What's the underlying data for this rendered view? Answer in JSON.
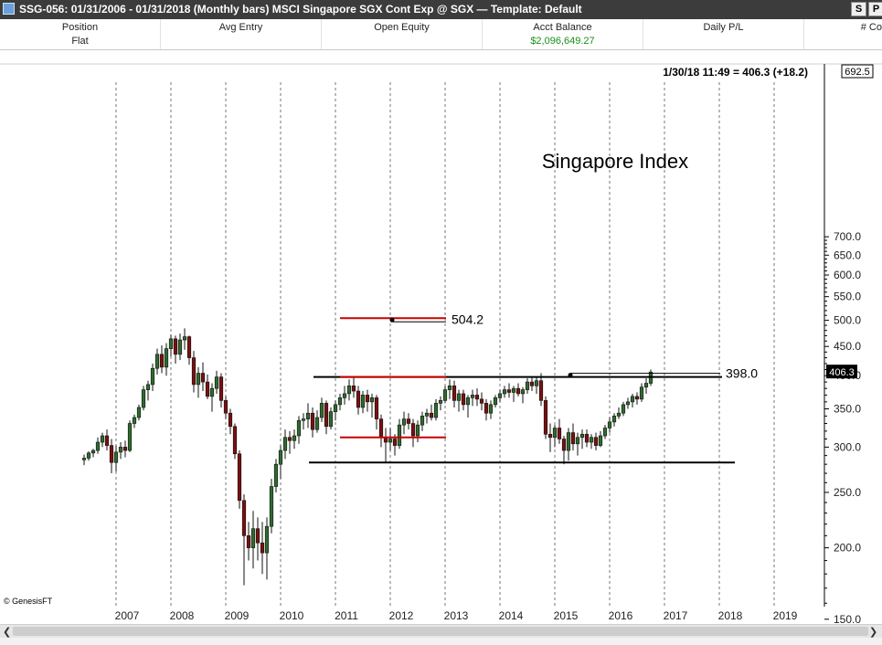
{
  "window": {
    "title": "SSG-056:  01/31/2006 - 01/31/2018  (Monthly bars)   MSCI Singapore SGX Cont Exp @ SGX  —  Template: Default",
    "buttons": [
      "S",
      "P"
    ]
  },
  "info_bar": {
    "columns": [
      {
        "header": "Position",
        "value": "Flat"
      },
      {
        "header": "Avg Entry",
        "value": ""
      },
      {
        "header": "Open Equity",
        "value": ""
      },
      {
        "header": "Acct Balance",
        "value": "$2,096,649.27"
      },
      {
        "header": "Daily P/L",
        "value": ""
      },
      {
        "header": "# Co",
        "value": ""
      }
    ]
  },
  "chart_data": {
    "type": "candlestick",
    "title": "Singapore Index",
    "quote_line": "1/30/18 11:49 = 406.3 (+18.2)",
    "y_scale": "log",
    "ylim": [
      145,
      708
    ],
    "y_ticks": [
      "150.0",
      "200.0",
      "250.0",
      "300.0",
      "350.0",
      "400.0",
      "450.0",
      "500.0",
      "550.0",
      "600.0",
      "650.0",
      "700.0"
    ],
    "x_labels": [
      "2007",
      "2008",
      "2009",
      "2010",
      "2011",
      "2012",
      "2013",
      "2014",
      "2015",
      "2016",
      "2017",
      "2018",
      "2019"
    ],
    "grid": "vertical dashed at year starts",
    "last_price_tag": "406.3",
    "top_price_tag": "692.5",
    "copyright": "© GenesisFT",
    "annotations": [
      {
        "type": "target_line",
        "label": "504.2",
        "value": 504.2,
        "color": "#cc0000"
      },
      {
        "type": "resistance_line",
        "label": "398.0",
        "value": 398.0,
        "color": "#000000"
      },
      {
        "type": "support_line",
        "value": 282,
        "color": "#000000"
      },
      {
        "type": "range_top_marker",
        "value": 398,
        "color": "#cc0000"
      },
      {
        "type": "range_bottom_marker",
        "value": 312,
        "color": "#cc0000"
      }
    ],
    "start": "2006-06",
    "candles": [
      [
        285,
        291,
        279,
        287
      ],
      [
        287,
        295,
        284,
        293
      ],
      [
        293,
        298,
        288,
        296
      ],
      [
        296,
        312,
        292,
        306
      ],
      [
        306,
        318,
        300,
        314
      ],
      [
        314,
        322,
        296,
        302
      ],
      [
        302,
        310,
        270,
        282
      ],
      [
        282,
        302,
        272,
        294
      ],
      [
        294,
        306,
        286,
        300
      ],
      [
        300,
        308,
        288,
        296
      ],
      [
        296,
        334,
        294,
        330
      ],
      [
        330,
        342,
        324,
        338
      ],
      [
        338,
        356,
        334,
        352
      ],
      [
        352,
        384,
        348,
        378
      ],
      [
        378,
        392,
        362,
        386
      ],
      [
        386,
        420,
        376,
        412
      ],
      [
        412,
        446,
        402,
        436
      ],
      [
        436,
        452,
        404,
        414
      ],
      [
        414,
        456,
        400,
        446
      ],
      [
        446,
        472,
        432,
        464
      ],
      [
        464,
        470,
        420,
        436
      ],
      [
        436,
        474,
        426,
        462
      ],
      [
        462,
        484,
        444,
        468
      ],
      [
        468,
        470,
        418,
        430
      ],
      [
        430,
        442,
        374,
        386
      ],
      [
        386,
        414,
        366,
        404
      ],
      [
        404,
        422,
        376,
        390
      ],
      [
        390,
        402,
        364,
        368
      ],
      [
        368,
        388,
        346,
        380
      ],
      [
        380,
        408,
        372,
        398
      ],
      [
        398,
        404,
        352,
        362
      ],
      [
        362,
        368,
        336,
        344
      ],
      [
        344,
        350,
        316,
        326
      ],
      [
        326,
        330,
        286,
        292
      ],
      [
        292,
        296,
        234,
        242
      ],
      [
        242,
        248,
        172,
        210
      ],
      [
        210,
        222,
        190,
        200
      ],
      [
        200,
        232,
        184,
        216
      ],
      [
        216,
        226,
        190,
        204
      ],
      [
        204,
        222,
        180,
        196
      ],
      [
        196,
        226,
        176,
        218
      ],
      [
        218,
        264,
        212,
        256
      ],
      [
        256,
        286,
        250,
        280
      ],
      [
        280,
        302,
        264,
        296
      ],
      [
        296,
        322,
        286,
        312
      ],
      [
        312,
        320,
        292,
        308
      ],
      [
        308,
        322,
        298,
        314
      ],
      [
        314,
        340,
        304,
        334
      ],
      [
        334,
        344,
        322,
        336
      ],
      [
        336,
        358,
        324,
        344
      ],
      [
        344,
        352,
        312,
        322
      ],
      [
        322,
        348,
        318,
        338
      ],
      [
        338,
        366,
        332,
        358
      ],
      [
        358,
        362,
        316,
        326
      ],
      [
        326,
        352,
        322,
        346
      ],
      [
        346,
        362,
        334,
        356
      ],
      [
        356,
        372,
        348,
        366
      ],
      [
        366,
        384,
        356,
        372
      ],
      [
        372,
        394,
        362,
        384
      ],
      [
        384,
        398,
        366,
        376
      ],
      [
        376,
        384,
        342,
        352
      ],
      [
        352,
        376,
        344,
        370
      ],
      [
        370,
        378,
        346,
        360
      ],
      [
        360,
        372,
        338,
        366
      ],
      [
        366,
        370,
        322,
        336
      ],
      [
        336,
        342,
        300,
        312
      ],
      [
        312,
        324,
        282,
        306
      ],
      [
        306,
        324,
        296,
        310
      ],
      [
        310,
        316,
        290,
        302
      ],
      [
        302,
        336,
        298,
        328
      ],
      [
        328,
        346,
        316,
        336
      ],
      [
        336,
        344,
        322,
        330
      ],
      [
        330,
        336,
        300,
        314
      ],
      [
        314,
        334,
        306,
        328
      ],
      [
        328,
        346,
        320,
        340
      ],
      [
        340,
        350,
        330,
        344
      ],
      [
        344,
        356,
        334,
        338
      ],
      [
        338,
        364,
        334,
        358
      ],
      [
        358,
        368,
        348,
        362
      ],
      [
        362,
        384,
        358,
        378
      ],
      [
        378,
        394,
        364,
        384
      ],
      [
        384,
        392,
        352,
        362
      ],
      [
        362,
        378,
        346,
        372
      ],
      [
        372,
        378,
        348,
        356
      ],
      [
        356,
        370,
        338,
        366
      ],
      [
        366,
        378,
        354,
        370
      ],
      [
        370,
        380,
        354,
        364
      ],
      [
        364,
        374,
        348,
        358
      ],
      [
        358,
        364,
        334,
        344
      ],
      [
        344,
        362,
        336,
        356
      ],
      [
        356,
        370,
        352,
        366
      ],
      [
        366,
        378,
        360,
        372
      ],
      [
        372,
        384,
        366,
        378
      ],
      [
        378,
        388,
        366,
        374
      ],
      [
        374,
        384,
        360,
        380
      ],
      [
        380,
        388,
        368,
        372
      ],
      [
        372,
        382,
        358,
        378
      ],
      [
        378,
        396,
        372,
        390
      ],
      [
        390,
        398,
        376,
        384
      ],
      [
        384,
        398,
        372,
        392
      ],
      [
        392,
        404,
        354,
        362
      ],
      [
        362,
        368,
        310,
        316
      ],
      [
        316,
        330,
        294,
        312
      ],
      [
        312,
        328,
        300,
        324
      ],
      [
        324,
        336,
        304,
        310
      ],
      [
        310,
        314,
        280,
        296
      ],
      [
        296,
        324,
        284,
        318
      ],
      [
        318,
        330,
        296,
        304
      ],
      [
        304,
        318,
        290,
        312
      ],
      [
        312,
        322,
        298,
        316
      ],
      [
        316,
        322,
        300,
        306
      ],
      [
        306,
        316,
        298,
        312
      ],
      [
        312,
        318,
        296,
        302
      ],
      [
        302,
        320,
        300,
        314
      ],
      [
        314,
        328,
        310,
        324
      ],
      [
        324,
        338,
        318,
        332
      ],
      [
        332,
        344,
        326,
        340
      ],
      [
        340,
        352,
        336,
        344
      ],
      [
        344,
        360,
        340,
        356
      ],
      [
        356,
        366,
        350,
        360
      ],
      [
        360,
        372,
        352,
        368
      ],
      [
        368,
        374,
        356,
        364
      ],
      [
        364,
        388,
        360,
        382
      ],
      [
        382,
        396,
        372,
        388
      ],
      [
        388,
        410,
        384,
        406
      ]
    ]
  }
}
